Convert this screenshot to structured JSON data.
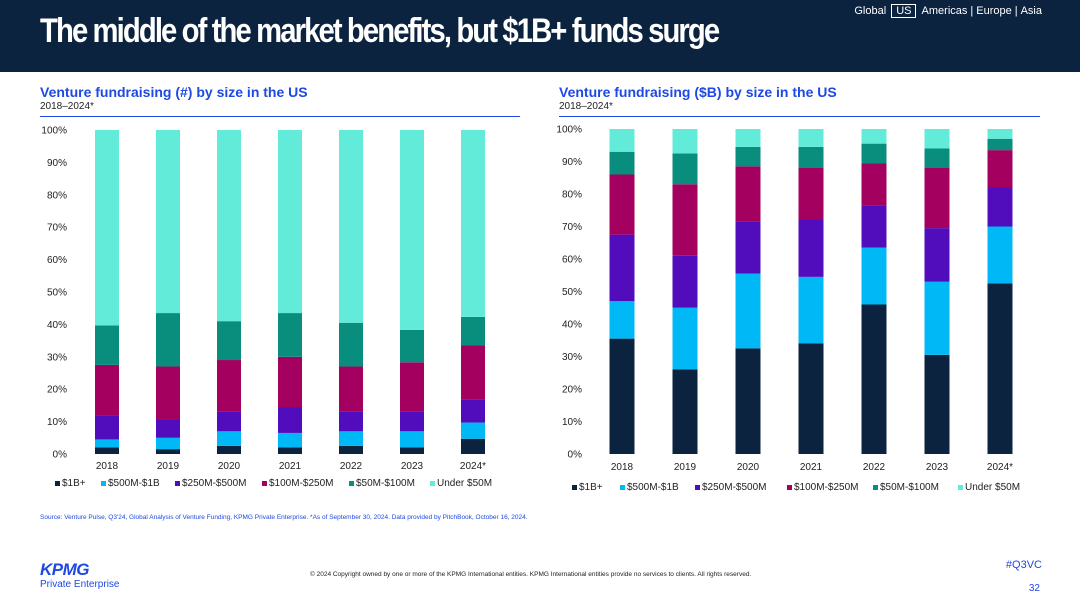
{
  "header": {
    "title": "The middle of the market benefits, but $1B+ funds surge",
    "regions": [
      "Global",
      "US",
      "Americas",
      "Europe",
      "Asia"
    ],
    "active_region": "US"
  },
  "colors": {
    "header_bg": "#0c2340",
    "accent": "#1e49e2",
    "series": [
      "#0c2340",
      "#00b8f5",
      "#510dbc",
      "#a3005f",
      "#098e7e",
      "#63ebda"
    ]
  },
  "left_panel": {
    "title": "Venture fundraising (#) by size in the US",
    "subtitle": "2018–2024*"
  },
  "right_panel": {
    "title": "Venture fundraising ($B) by size in the US",
    "subtitle": "2018–2024*"
  },
  "chart_data": [
    {
      "type": "bar",
      "stacked": true,
      "title": "Venture fundraising (#) by size in the US",
      "subtitle": "2018–2024*",
      "categories": [
        "2018",
        "2019",
        "2020",
        "2021",
        "2022",
        "2023",
        "2024*"
      ],
      "yticks": [
        "0%",
        "10%",
        "20%",
        "30%",
        "40%",
        "50%",
        "60%",
        "70%",
        "80%",
        "90%",
        "100%"
      ],
      "ylim": [
        0,
        100
      ],
      "series": [
        {
          "name": "$1B+",
          "values": [
            2,
            1.5,
            2.5,
            2,
            2.5,
            2,
            4.7
          ]
        },
        {
          "name": "$500M-$1B",
          "values": [
            2.5,
            3.5,
            4.5,
            4.5,
            4.5,
            5,
            5
          ]
        },
        {
          "name": "$250M-$500M",
          "values": [
            7.5,
            5.5,
            6,
            8,
            6,
            6,
            7
          ]
        },
        {
          "name": "$100M-$250M",
          "values": [
            15.5,
            16.5,
            16,
            15.5,
            14,
            15.3,
            16.8
          ]
        },
        {
          "name": "$50M-$100M",
          "values": [
            12.2,
            16.5,
            12,
            13.5,
            13.5,
            10,
            8.8
          ]
        },
        {
          "name": "Under $50M",
          "values": [
            60.3,
            56.5,
            59,
            56.5,
            59.5,
            61.7,
            57.7
          ]
        }
      ],
      "legend": "bottom"
    },
    {
      "type": "bar",
      "stacked": true,
      "title": "Venture fundraising ($B) by size in the US",
      "subtitle": "2018–2024*",
      "categories": [
        "2018",
        "2019",
        "2020",
        "2021",
        "2022",
        "2023",
        "2024*"
      ],
      "yticks": [
        "0%",
        "10%",
        "20%",
        "30%",
        "40%",
        "50%",
        "60%",
        "70%",
        "80%",
        "90%",
        "100%"
      ],
      "ylim": [
        0,
        100
      ],
      "series": [
        {
          "name": "$1B+",
          "values": [
            35.5,
            26,
            32.5,
            34,
            46,
            30.5,
            52.5
          ]
        },
        {
          "name": "$500M-$1B",
          "values": [
            11.5,
            19,
            23,
            20.5,
            17.5,
            22.5,
            17.5
          ]
        },
        {
          "name": "$250M-$500M",
          "values": [
            20.5,
            16,
            16,
            17.5,
            13,
            16.5,
            12
          ]
        },
        {
          "name": "$100M-$250M",
          "values": [
            18.5,
            22,
            17,
            16,
            13,
            18.5,
            11.5
          ]
        },
        {
          "name": "$50M-$100M",
          "values": [
            7,
            9.5,
            6,
            6.5,
            6,
            6,
            3.5
          ]
        },
        {
          "name": "Under $50M",
          "values": [
            7,
            7.5,
            5.5,
            5.5,
            4.5,
            6,
            3
          ]
        }
      ],
      "legend": "bottom"
    }
  ],
  "footer": {
    "source": "Source: Venture Pulse, Q3'24, Global Analysis of Venture Funding, KPMG Private Enterprise. *As of September 30, 2024. Data provided by PitchBook, October 16, 2024.",
    "copyright": "© 2024 Copyright owned by one or more of the KPMG International entities. KPMG International entities provide no services to clients. All rights reserved.",
    "logo_text": "KPMG",
    "logo_sub": "Private Enterprise",
    "hashtag": "#Q3VC",
    "page_number": "32"
  }
}
